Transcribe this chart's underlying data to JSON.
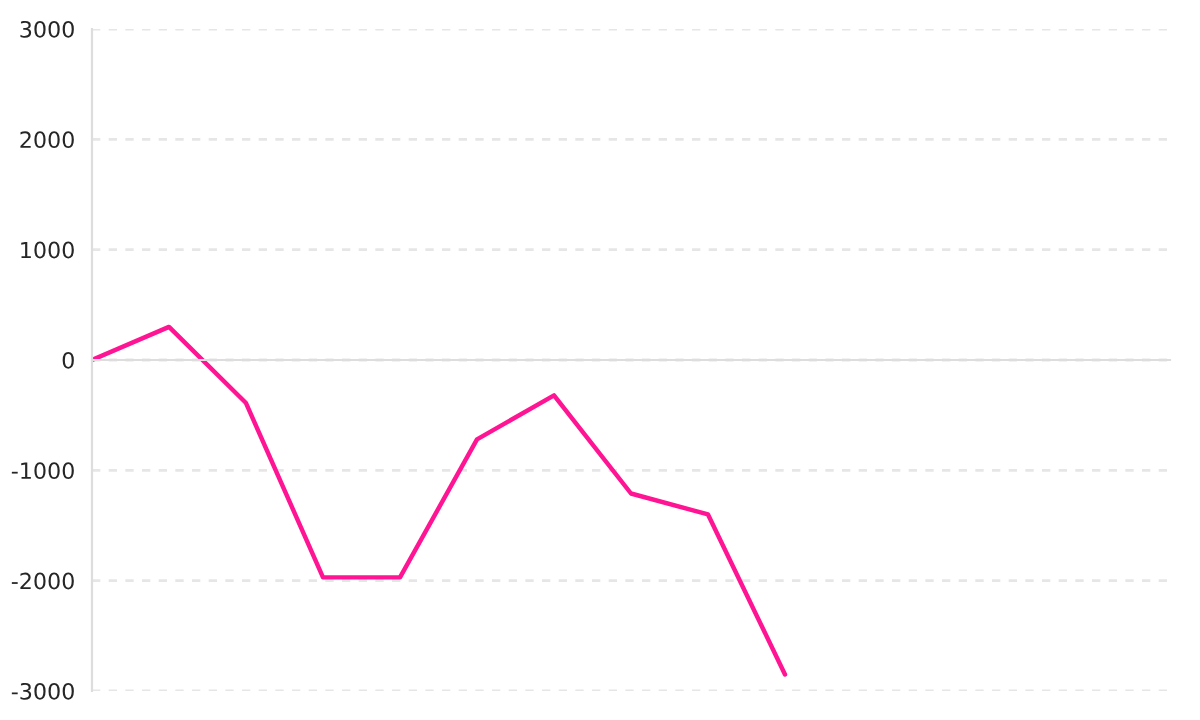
{
  "chart_data": {
    "type": "line",
    "categories": [
      null,
      null,
      null,
      null,
      null,
      null,
      null,
      null,
      null,
      null,
      null,
      null,
      null,
      null,
      null
    ],
    "series": [
      {
        "color": "#ff1493",
        "values": [
          0,
          300,
          -390,
          -1970,
          -1970,
          -720,
          -320,
          -1210,
          -1400,
          -2850,
          null,
          null,
          null,
          null,
          null
        ]
      }
    ],
    "ylim": [
      -3000,
      3000
    ],
    "yticks": [
      -3000,
      -2000,
      -1000,
      0,
      1000,
      2000,
      3000
    ],
    "grid": "y",
    "tick_labels": "y",
    "marker": "none",
    "line_style": "solid"
  }
}
